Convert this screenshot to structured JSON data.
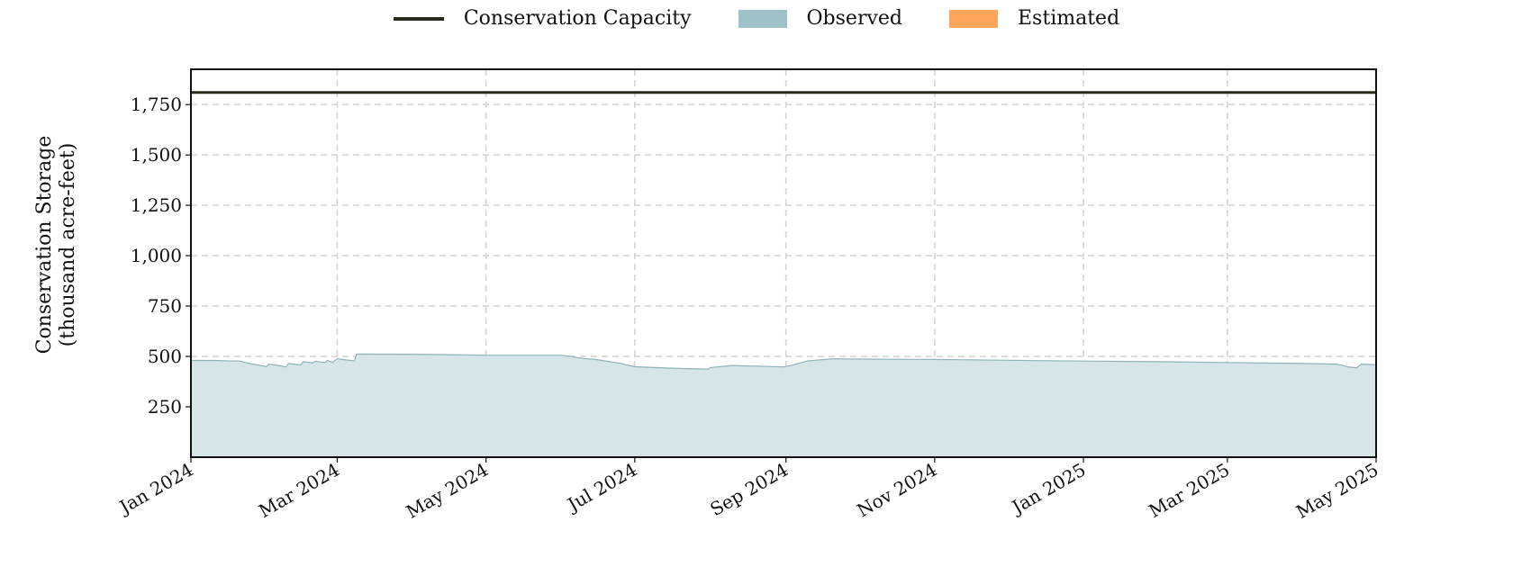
{
  "legend": {
    "capacity_label": "Conservation Capacity",
    "observed_label": "Observed",
    "estimated_label": "Estimated"
  },
  "colors": {
    "capacity": "#2a2a1f",
    "observed_fill": "#d6e5e7",
    "observed_line": "#8fb3b9",
    "observed_swatch": "#9ec2c8",
    "estimated_swatch": "#ffa65c",
    "grid": "#d5d5d5"
  },
  "chart_data": {
    "type": "area",
    "ylabel_line1": "Conservation Storage",
    "ylabel_line2": "(thousand acre-feet)",
    "ylim": [
      0,
      1925
    ],
    "xlim": [
      "2024-01-01",
      "2025-05-01"
    ],
    "yticks": [
      250,
      500,
      750,
      1000,
      1250,
      1500,
      1750
    ],
    "ytick_labels": [
      "250",
      "500",
      "750",
      "1,000",
      "1,250",
      "1,500",
      "1,750"
    ],
    "xticks": [
      "2024-01-01",
      "2024-03-01",
      "2024-05-01",
      "2024-07-01",
      "2024-09-01",
      "2024-11-01",
      "2025-01-01",
      "2025-03-01",
      "2025-05-01"
    ],
    "xtick_labels": [
      "Jan 2024",
      "Mar 2024",
      "May 2024",
      "Jul 2024",
      "Sep 2024",
      "Nov 2024",
      "Jan 2025",
      "Mar 2025",
      "May 2025"
    ],
    "grid": true,
    "legend_position": "top-center",
    "capacity": 1810,
    "series": [
      {
        "name": "Observed",
        "x": [
          "2024-01-01",
          "2024-01-10",
          "2024-01-21",
          "2024-01-25",
          "2024-02-01",
          "2024-02-02",
          "2024-02-06",
          "2024-02-09",
          "2024-02-10",
          "2024-02-15",
          "2024-02-16",
          "2024-02-20",
          "2024-02-21",
          "2024-02-25",
          "2024-02-26",
          "2024-02-28",
          "2024-03-01",
          "2024-03-08",
          "2024-03-09",
          "2024-04-01",
          "2024-05-01",
          "2024-06-01",
          "2024-06-10",
          "2024-06-15",
          "2024-06-25",
          "2024-07-01",
          "2024-07-15",
          "2024-07-31",
          "2024-08-01",
          "2024-08-10",
          "2024-08-20",
          "2024-08-31",
          "2024-09-03",
          "2024-09-10",
          "2024-09-20",
          "2024-10-01",
          "2024-11-01",
          "2024-12-01",
          "2025-01-01",
          "2025-02-01",
          "2025-03-01",
          "2025-04-01",
          "2025-04-15",
          "2025-04-20",
          "2025-04-23",
          "2025-04-25",
          "2025-05-01"
        ],
        "y": [
          480,
          480,
          477,
          465,
          450,
          462,
          455,
          448,
          465,
          458,
          474,
          468,
          476,
          470,
          480,
          470,
          488,
          478,
          512,
          511,
          506,
          506,
          490,
          485,
          466,
          449,
          442,
          437,
          445,
          455,
          452,
          448,
          455,
          478,
          488,
          487,
          485,
          481,
          477,
          474,
          470,
          465,
          462,
          447,
          444,
          462,
          459
        ]
      },
      {
        "name": "Estimated",
        "x": [],
        "y": []
      }
    ]
  }
}
